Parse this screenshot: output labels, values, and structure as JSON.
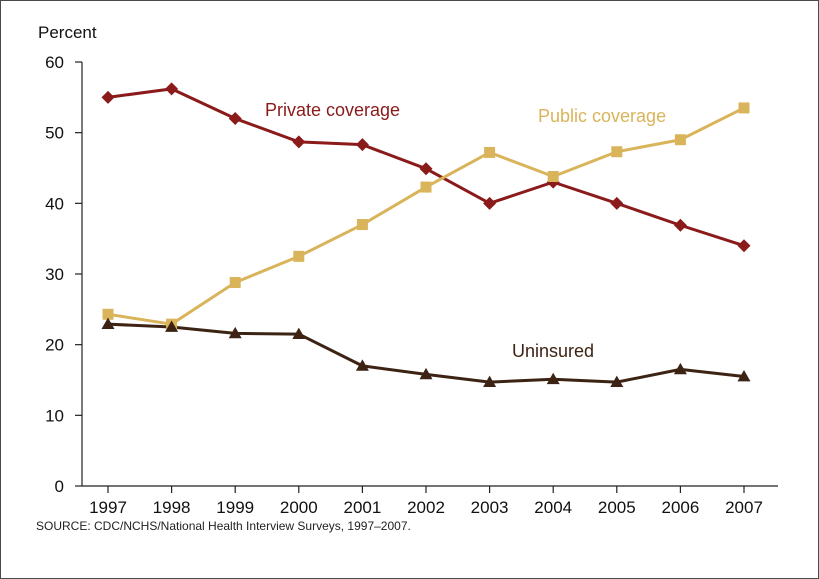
{
  "chart_data": {
    "type": "line",
    "ylabel": "Percent",
    "ylim": [
      0,
      60
    ],
    "yticks": [
      0,
      10,
      20,
      30,
      40,
      50,
      60
    ],
    "categories": [
      "1997",
      "1998",
      "1999",
      "2000",
      "2001",
      "2002",
      "2003",
      "2004",
      "2005",
      "2006",
      "2007"
    ],
    "grid": false,
    "series": [
      {
        "name": "Private coverage",
        "color": "#8b1a1a",
        "marker": "diamond",
        "values": [
          55.0,
          56.2,
          52.0,
          48.7,
          48.3,
          44.9,
          40.0,
          43.0,
          40.0,
          36.9,
          34.0
        ]
      },
      {
        "name": "Public coverage",
        "color": "#d9b45a",
        "marker": "square",
        "values": [
          24.3,
          22.9,
          28.8,
          32.5,
          37.0,
          42.3,
          47.2,
          43.8,
          47.3,
          49.0,
          53.5
        ]
      },
      {
        "name": "Uninsured",
        "color": "#3d2314",
        "marker": "triangle",
        "values": [
          22.9,
          22.5,
          21.6,
          21.5,
          17.0,
          15.8,
          14.7,
          15.1,
          14.7,
          16.5,
          15.5
        ]
      }
    ],
    "source": "SOURCE: CDC/NCHS/National Health Interview Surveys, 1997–2007."
  }
}
